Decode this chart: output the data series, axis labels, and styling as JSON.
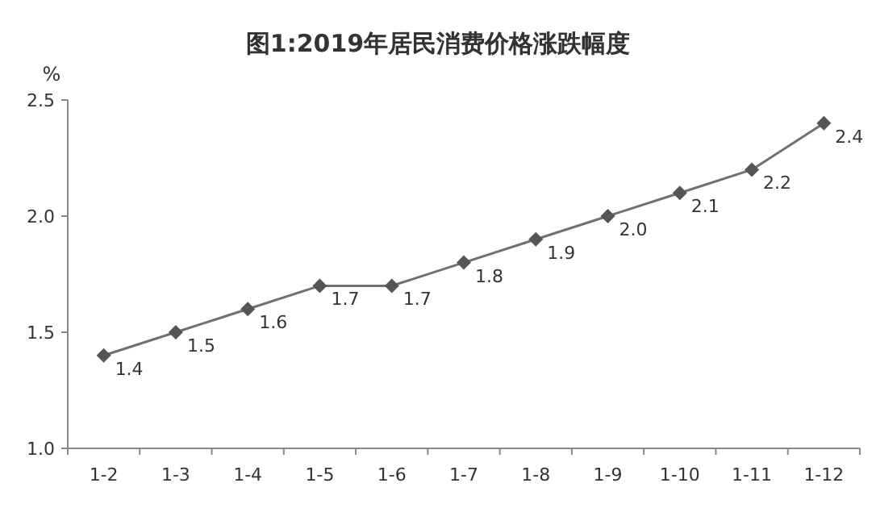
{
  "chart_data": {
    "type": "line",
    "title": "图1:2019年居民消费价格涨跌幅度",
    "ylabel": "%",
    "categories": [
      "1-2",
      "1-3",
      "1-4",
      "1-5",
      "1-6",
      "1-7",
      "1-8",
      "1-9",
      "1-10",
      "1-11",
      "1-12"
    ],
    "values": [
      1.4,
      1.5,
      1.6,
      1.7,
      1.7,
      1.8,
      1.9,
      2.0,
      2.1,
      2.2,
      2.4
    ],
    "value_labels": [
      "1.4",
      "1.5",
      "1.6",
      "1.7",
      "1.7",
      "1.8",
      "1.9",
      "2.0",
      "2.1",
      "2.2",
      "2.4"
    ],
    "color": "#707070",
    "marker": "diamond",
    "ylim": [
      1.0,
      2.5
    ],
    "yticks": [
      {
        "value": 1.0,
        "label": "1.0"
      },
      {
        "value": 1.5,
        "label": "1.5"
      },
      {
        "value": 2.0,
        "label": "2.0"
      },
      {
        "value": 2.5,
        "label": "2.5"
      }
    ]
  }
}
